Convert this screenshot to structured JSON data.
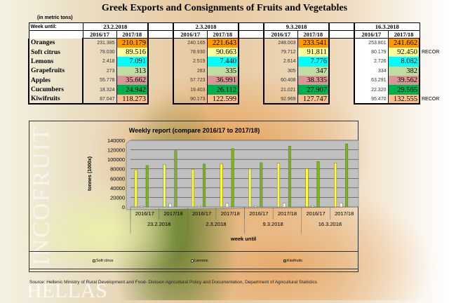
{
  "title": "Greek Exports and Consignments of Fruits and Vegetables",
  "units": "(in metric tons)",
  "week_label": "Week until:",
  "weeks": [
    "23.2.2018",
    "2.3.2018",
    "9.3.2018",
    "16.3.2018"
  ],
  "seasons": [
    "2016/17",
    "2017/18"
  ],
  "products": [
    {
      "name": "Oranges",
      "color": "#ff9900",
      "v1617": [
        "231.385",
        "240.165",
        "248.003",
        "253.801"
      ],
      "v1718": [
        "210.179",
        "221.643",
        "233.541",
        "241.662"
      ],
      "note": ""
    },
    {
      "name": "Soft citrus",
      "color": "#ffff99",
      "v1617": [
        "78.030",
        "78.930",
        "79.712",
        "80.179"
      ],
      "v1718": [
        "89.516",
        "90.663",
        "91.811",
        "92.450"
      ],
      "note": "RECOR"
    },
    {
      "name": "Lemons",
      "color": "#00ffff",
      "v1617": [
        "2.418",
        "2.519",
        "2.614",
        "2.726"
      ],
      "v1718": [
        "7.091",
        "7.440",
        "7.776",
        "8.082"
      ],
      "note": ""
    },
    {
      "name": "Grapefruits",
      "color": "#c0dca0",
      "v1617": [
        "273",
        "283",
        "305",
        "334"
      ],
      "v1718": [
        "313",
        "335",
        "347",
        "382"
      ],
      "note": ""
    },
    {
      "name": "Apples",
      "color": "#d99595",
      "v1617": [
        "55.778",
        "57.723",
        "60.408",
        "63.291"
      ],
      "v1718": [
        "35.662",
        "36.991",
        "38.335",
        "39.562"
      ],
      "note": ""
    },
    {
      "name": "Cucumbers",
      "color": "#00b050",
      "v1617": [
        "18.324",
        "19.403",
        "21.021",
        "22.320"
      ],
      "v1718": [
        "24.942",
        "26.112",
        "27.907",
        "29.565"
      ],
      "note": ""
    },
    {
      "name": "Kiwifruits",
      "color": "#fac090",
      "v1617": [
        "87.047",
        "90.173",
        "92.969",
        "95.470"
      ],
      "v1718": [
        "118.273",
        "122.599",
        "127.747",
        "132.555"
      ],
      "note": "RECOR"
    }
  ],
  "chart_data": {
    "type": "bar",
    "title": "Weekly report (compare 2016/17 to 2017/18)",
    "ylabel": "tonnes (1000x)",
    "xlabel": "week until",
    "ylim": [
      0,
      140000
    ],
    "yticks": [
      "0",
      "20000",
      "40000",
      "60000",
      "80000",
      "100000",
      "120000",
      "140000"
    ],
    "categories": [
      [
        "2016/17",
        "23.2.2018"
      ],
      [
        "2017/18",
        "23.2.2018"
      ],
      [
        "2016/17",
        "2.3.2018"
      ],
      [
        "2017/18",
        "2.3.2018"
      ],
      [
        "2016/17",
        "9.3.2018"
      ],
      [
        "2017/18",
        "9.3.2018"
      ],
      [
        "2016/17",
        "16.3.2018"
      ],
      [
        "2017/18",
        "16.3.2018"
      ]
    ],
    "group_labels": [
      "23.2.2018",
      "2.3.2018",
      "9.3.2018",
      "16.3.2018"
    ],
    "sub_labels": [
      "2016/17",
      "2017/18",
      "2016/17",
      "2017/18",
      "2016/17",
      "2017/18",
      "2016/17",
      "2017/18"
    ],
    "series": [
      {
        "name": "Soft citrus",
        "color": "#ffff33",
        "values": [
          78030,
          89516,
          78930,
          90663,
          79712,
          91811,
          80179,
          92450
        ]
      },
      {
        "name": "Lemons",
        "color": "#ffffcc",
        "values": [
          2418,
          7091,
          2519,
          7440,
          2614,
          7776,
          2726,
          8082
        ]
      },
      {
        "name": "Kiwifruits",
        "color": "#7cb518",
        "values": [
          87047,
          118273,
          90173,
          122599,
          92969,
          127747,
          95470,
          132555
        ]
      }
    ],
    "grid": true,
    "legend": "bottom"
  },
  "source": "Source: Hellenic Ministry of Rural Development and Food- Division Agricultural Policy and Documentation, Department of Agricultural Statistics",
  "brand": "INCOFRUIT HELLAS"
}
